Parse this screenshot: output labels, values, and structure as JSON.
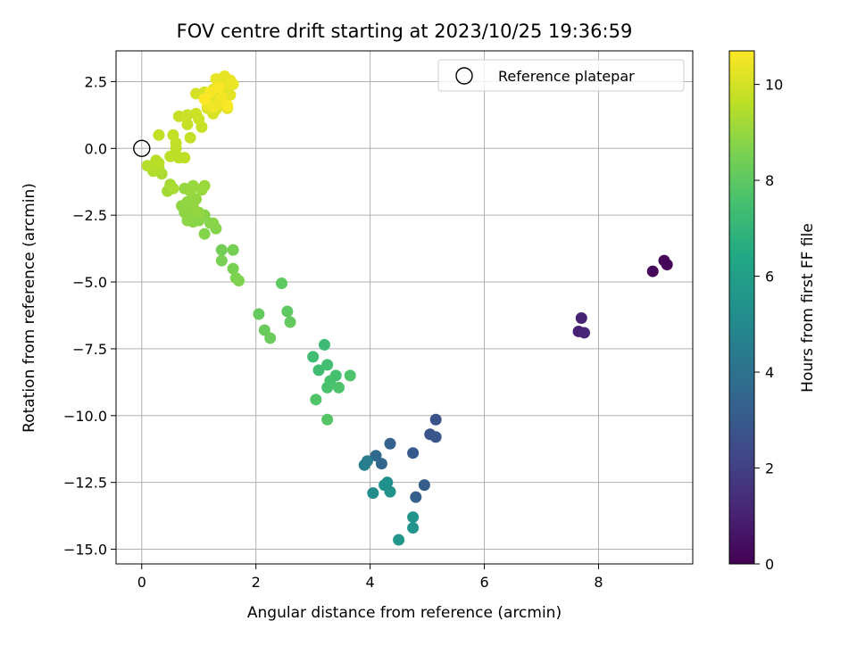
{
  "chart_data": {
    "type": "scatter",
    "title": "FOV centre drift starting at 2023/10/25 19:36:59",
    "xlabel": "Angular distance from reference (arcmin)",
    "ylabel": "Rotation from reference (arcmin)",
    "xlim": [
      -0.45,
      9.65
    ],
    "ylim": [
      -15.55,
      3.65
    ],
    "xticks": [
      0,
      2,
      4,
      6,
      8
    ],
    "xtick_labels": [
      "0",
      "2",
      "4",
      "6",
      "8"
    ],
    "yticks": [
      2.5,
      0,
      -2.5,
      -5,
      -7.5,
      -10,
      -12.5,
      -15
    ],
    "ytick_labels": [
      "2.5",
      "0.0",
      "−2.5",
      "−5.0",
      "−7.5",
      "−10.0",
      "−12.5",
      "−15.0"
    ],
    "grid": true,
    "legend": {
      "position": "top-right",
      "entries": [
        "Reference platepar"
      ]
    },
    "reference_point": {
      "x": 0,
      "y": 0
    },
    "colorbar": {
      "label": "Hours from first FF file",
      "range": [
        0,
        10.7
      ],
      "ticks": [
        0,
        2,
        4,
        6,
        8,
        10
      ],
      "tick_labels": [
        "0",
        "2",
        "4",
        "6",
        "8",
        "10"
      ],
      "colormap": "viridis"
    },
    "points": [
      {
        "x": 9.15,
        "y": -4.2,
        "h": 0.1
      },
      {
        "x": 9.2,
        "y": -4.35,
        "h": 0.15
      },
      {
        "x": 8.95,
        "y": -4.6,
        "h": 0.2
      },
      {
        "x": 7.7,
        "y": -6.35,
        "h": 1.0
      },
      {
        "x": 7.65,
        "y": -6.85,
        "h": 1.05
      },
      {
        "x": 7.75,
        "y": -6.9,
        "h": 1.1
      },
      {
        "x": 5.15,
        "y": -10.15,
        "h": 2.7
      },
      {
        "x": 5.05,
        "y": -10.7,
        "h": 2.8
      },
      {
        "x": 5.15,
        "y": -10.8,
        "h": 2.85
      },
      {
        "x": 4.75,
        "y": -11.4,
        "h": 3.0
      },
      {
        "x": 4.95,
        "y": -12.6,
        "h": 3.1
      },
      {
        "x": 4.8,
        "y": -13.05,
        "h": 3.2
      },
      {
        "x": 4.35,
        "y": -11.05,
        "h": 3.3
      },
      {
        "x": 4.2,
        "y": -11.8,
        "h": 3.5
      },
      {
        "x": 4.1,
        "y": -11.5,
        "h": 3.6
      },
      {
        "x": 3.95,
        "y": -11.7,
        "h": 4.4
      },
      {
        "x": 3.9,
        "y": -11.85,
        "h": 4.6
      },
      {
        "x": 4.05,
        "y": -12.9,
        "h": 5.2
      },
      {
        "x": 4.3,
        "y": -12.5,
        "h": 5.3
      },
      {
        "x": 4.25,
        "y": -12.6,
        "h": 5.35
      },
      {
        "x": 4.35,
        "y": -12.85,
        "h": 5.4
      },
      {
        "x": 4.75,
        "y": -13.8,
        "h": 5.5
      },
      {
        "x": 4.75,
        "y": -14.2,
        "h": 5.55
      },
      {
        "x": 4.5,
        "y": -14.65,
        "h": 5.6
      },
      {
        "x": 3.2,
        "y": -7.35,
        "h": 7.3
      },
      {
        "x": 3.0,
        "y": -7.8,
        "h": 7.35
      },
      {
        "x": 3.1,
        "y": -8.3,
        "h": 7.4
      },
      {
        "x": 3.25,
        "y": -8.1,
        "h": 7.45
      },
      {
        "x": 3.4,
        "y": -8.5,
        "h": 7.5
      },
      {
        "x": 3.3,
        "y": -8.7,
        "h": 7.55
      },
      {
        "x": 3.25,
        "y": -8.95,
        "h": 7.6
      },
      {
        "x": 3.45,
        "y": -8.95,
        "h": 7.65
      },
      {
        "x": 3.65,
        "y": -8.5,
        "h": 7.7
      },
      {
        "x": 3.05,
        "y": -9.4,
        "h": 7.75
      },
      {
        "x": 3.25,
        "y": -10.15,
        "h": 7.8
      },
      {
        "x": 2.45,
        "y": -5.05,
        "h": 8.0
      },
      {
        "x": 2.55,
        "y": -6.1,
        "h": 8.05
      },
      {
        "x": 2.6,
        "y": -6.5,
        "h": 8.1
      },
      {
        "x": 2.05,
        "y": -6.2,
        "h": 8.15
      },
      {
        "x": 2.15,
        "y": -6.8,
        "h": 8.2
      },
      {
        "x": 2.25,
        "y": -7.1,
        "h": 8.25
      },
      {
        "x": 1.4,
        "y": -3.8,
        "h": 8.4
      },
      {
        "x": 1.6,
        "y": -3.8,
        "h": 8.45
      },
      {
        "x": 1.4,
        "y": -4.2,
        "h": 8.5
      },
      {
        "x": 1.6,
        "y": -4.5,
        "h": 8.55
      },
      {
        "x": 1.65,
        "y": -4.85,
        "h": 8.6
      },
      {
        "x": 1.7,
        "y": -4.95,
        "h": 8.62
      },
      {
        "x": 1.1,
        "y": -3.2,
        "h": 8.7
      },
      {
        "x": 1.3,
        "y": -3.0,
        "h": 8.72
      },
      {
        "x": 1.2,
        "y": -2.8,
        "h": 8.74
      },
      {
        "x": 1.25,
        "y": -2.8,
        "h": 8.76
      },
      {
        "x": 1.1,
        "y": -2.5,
        "h": 8.78
      },
      {
        "x": 1.0,
        "y": -2.7,
        "h": 8.8
      },
      {
        "x": 0.9,
        "y": -2.75,
        "h": 8.82
      },
      {
        "x": 0.8,
        "y": -2.7,
        "h": 8.84
      },
      {
        "x": 0.75,
        "y": -2.4,
        "h": 8.86
      },
      {
        "x": 0.85,
        "y": -2.5,
        "h": 8.88
      },
      {
        "x": 0.7,
        "y": -2.15,
        "h": 8.9
      },
      {
        "x": 0.8,
        "y": -2.0,
        "h": 8.92
      },
      {
        "x": 0.9,
        "y": -2.2,
        "h": 8.94
      },
      {
        "x": 1.0,
        "y": -2.4,
        "h": 8.96
      },
      {
        "x": 0.95,
        "y": -1.9,
        "h": 8.98
      },
      {
        "x": 0.75,
        "y": -1.5,
        "h": 9.0
      },
      {
        "x": 0.85,
        "y": -1.6,
        "h": 9.02
      },
      {
        "x": 0.9,
        "y": -1.4,
        "h": 9.04
      },
      {
        "x": 1.05,
        "y": -1.55,
        "h": 9.06
      },
      {
        "x": 1.1,
        "y": -1.4,
        "h": 9.08
      },
      {
        "x": 0.45,
        "y": -1.6,
        "h": 9.2
      },
      {
        "x": 0.5,
        "y": -1.35,
        "h": 9.25
      },
      {
        "x": 0.55,
        "y": -1.5,
        "h": 9.3
      },
      {
        "x": 0.35,
        "y": -0.95,
        "h": 9.35
      },
      {
        "x": 0.3,
        "y": -0.75,
        "h": 9.4
      },
      {
        "x": 0.2,
        "y": -0.85,
        "h": 9.45
      },
      {
        "x": 0.1,
        "y": -0.65,
        "h": 9.5
      },
      {
        "x": 0.25,
        "y": -0.45,
        "h": 9.55
      },
      {
        "x": 0.3,
        "y": -0.55,
        "h": 9.57
      },
      {
        "x": 0.5,
        "y": -0.3,
        "h": 9.6
      },
      {
        "x": 0.65,
        "y": -0.35,
        "h": 9.62
      },
      {
        "x": 0.75,
        "y": -0.35,
        "h": 9.64
      },
      {
        "x": 0.6,
        "y": 0.0,
        "h": 9.66
      },
      {
        "x": 0.6,
        "y": 0.2,
        "h": 9.68
      },
      {
        "x": 0.55,
        "y": 0.5,
        "h": 9.7
      },
      {
        "x": 0.3,
        "y": 0.5,
        "h": 9.72
      },
      {
        "x": 0.85,
        "y": 0.4,
        "h": 9.74
      },
      {
        "x": 0.8,
        "y": 0.9,
        "h": 9.76
      },
      {
        "x": 1.05,
        "y": 0.8,
        "h": 9.78
      },
      {
        "x": 0.65,
        "y": 1.2,
        "h": 9.8
      },
      {
        "x": 0.8,
        "y": 1.25,
        "h": 9.82
      },
      {
        "x": 0.95,
        "y": 1.3,
        "h": 9.84
      },
      {
        "x": 1.0,
        "y": 1.1,
        "h": 9.86
      },
      {
        "x": 0.95,
        "y": 2.05,
        "h": 10.0
      },
      {
        "x": 1.1,
        "y": 2.1,
        "h": 10.02
      },
      {
        "x": 1.15,
        "y": 1.95,
        "h": 10.04
      },
      {
        "x": 1.2,
        "y": 1.7,
        "h": 10.06
      },
      {
        "x": 1.15,
        "y": 1.5,
        "h": 10.08
      },
      {
        "x": 1.25,
        "y": 1.3,
        "h": 10.1
      },
      {
        "x": 1.3,
        "y": 1.45,
        "h": 10.12
      },
      {
        "x": 1.35,
        "y": 1.6,
        "h": 10.14
      },
      {
        "x": 1.3,
        "y": 1.9,
        "h": 10.16
      },
      {
        "x": 1.25,
        "y": 2.2,
        "h": 10.18
      },
      {
        "x": 1.4,
        "y": 2.05,
        "h": 10.2
      },
      {
        "x": 1.45,
        "y": 1.8,
        "h": 10.22
      },
      {
        "x": 1.5,
        "y": 1.5,
        "h": 10.24
      },
      {
        "x": 1.55,
        "y": 2.0,
        "h": 10.26
      },
      {
        "x": 1.5,
        "y": 2.3,
        "h": 10.28
      },
      {
        "x": 1.4,
        "y": 2.45,
        "h": 10.3
      },
      {
        "x": 1.3,
        "y": 2.6,
        "h": 10.32
      },
      {
        "x": 1.45,
        "y": 2.7,
        "h": 10.34
      },
      {
        "x": 1.55,
        "y": 2.55,
        "h": 10.36
      },
      {
        "x": 1.6,
        "y": 2.4,
        "h": 10.38
      },
      {
        "x": 1.15,
        "y": 1.65,
        "h": 10.4
      },
      {
        "x": 1.35,
        "y": 1.7,
        "h": 10.45
      },
      {
        "x": 1.25,
        "y": 1.55,
        "h": 10.5
      },
      {
        "x": 1.4,
        "y": 1.9,
        "h": 10.55
      },
      {
        "x": 1.2,
        "y": 2.1,
        "h": 10.6
      },
      {
        "x": 1.35,
        "y": 2.3,
        "h": 10.62
      },
      {
        "x": 1.5,
        "y": 1.6,
        "h": 10.65
      },
      {
        "x": 1.1,
        "y": 1.85,
        "h": 10.7
      }
    ]
  }
}
